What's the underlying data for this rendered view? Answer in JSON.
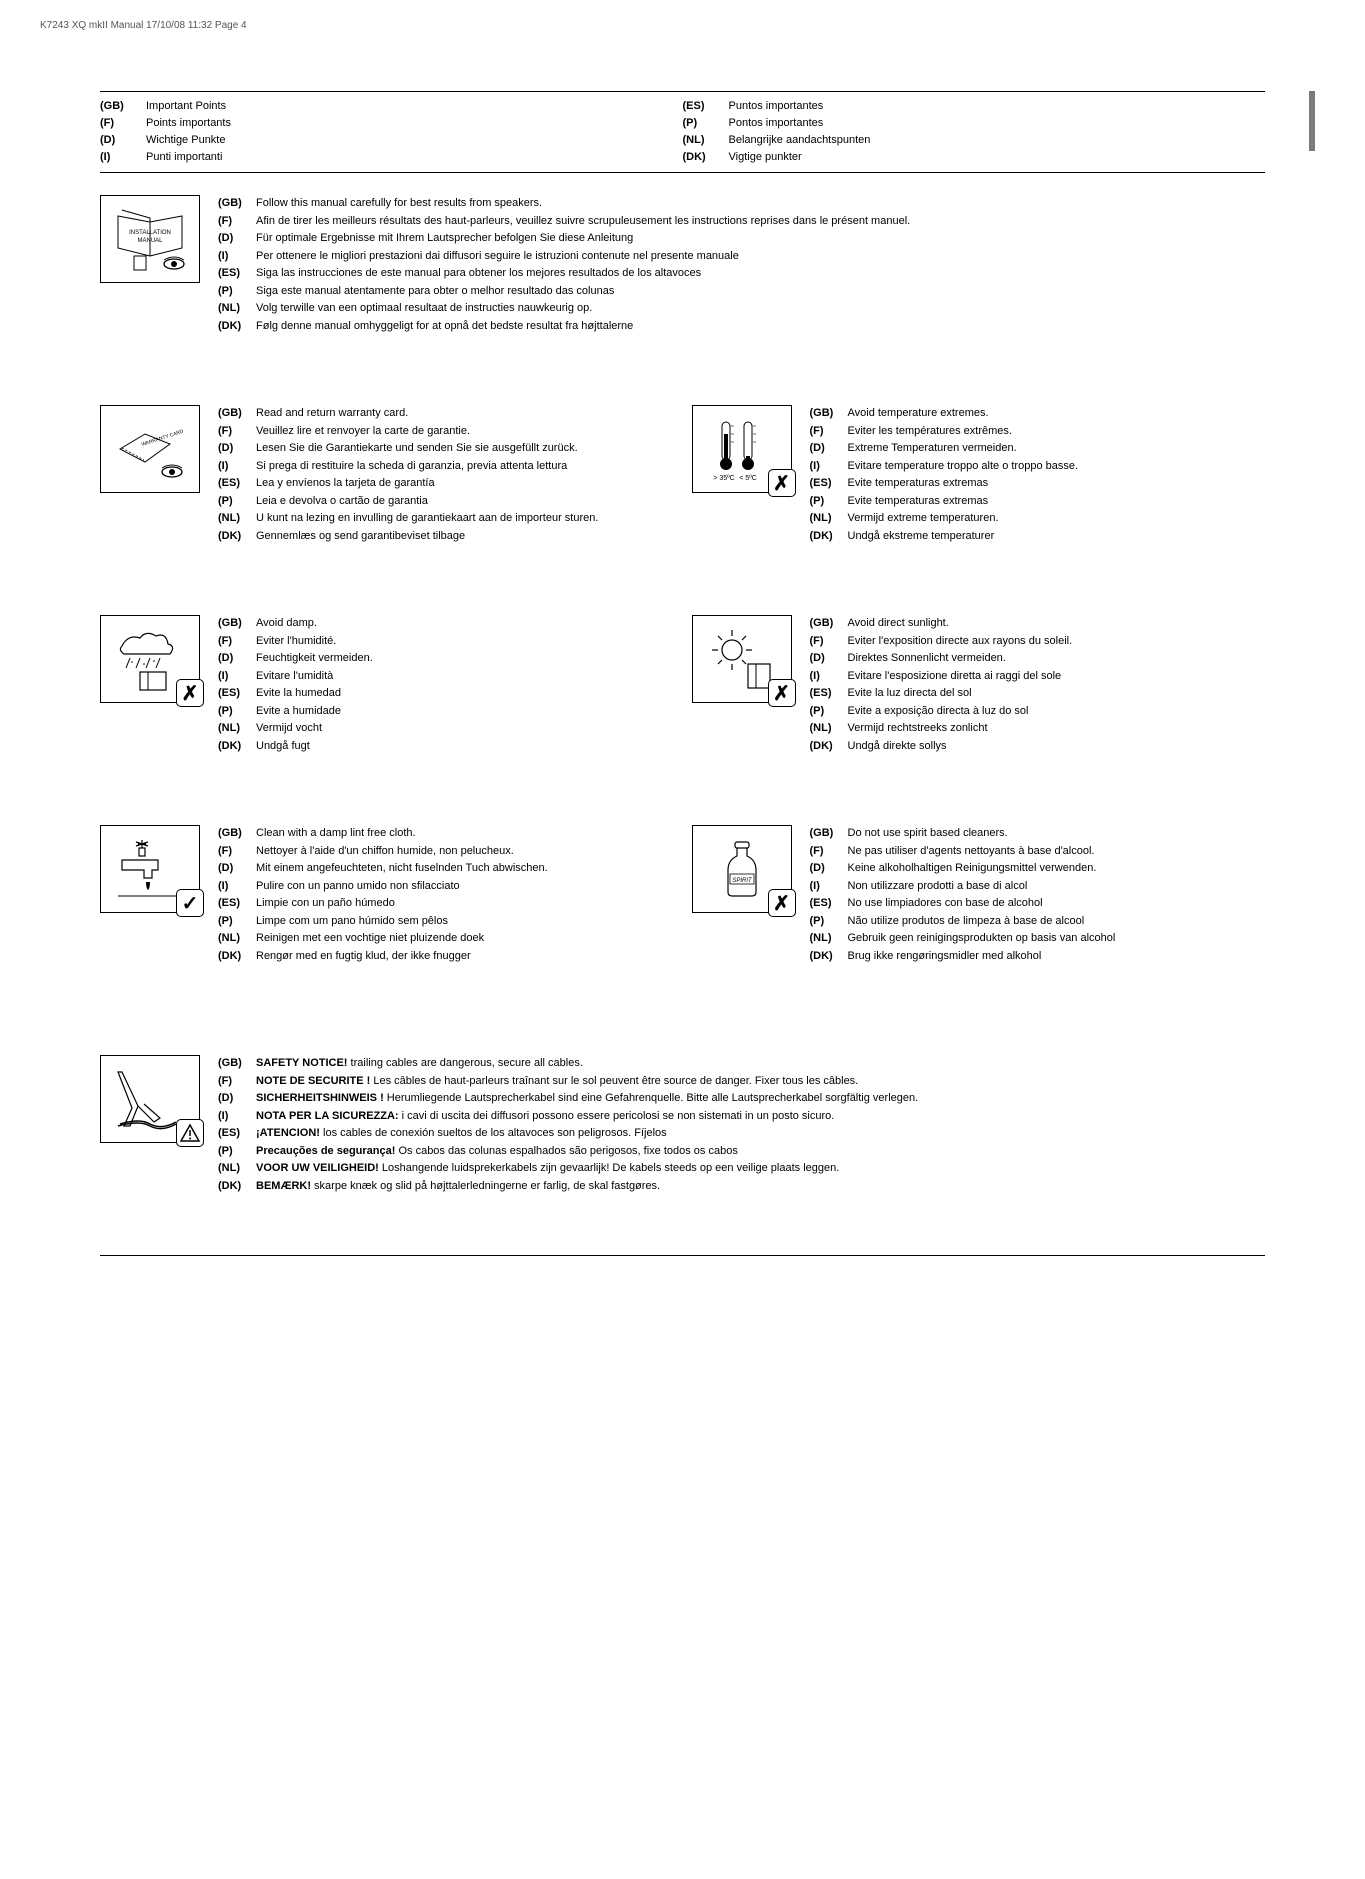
{
  "header_note": "K7243  XQ mkII Manual  17/10/08  11:32  Page 4",
  "titles": {
    "left": [
      {
        "code": "(GB)",
        "label": "Important Points"
      },
      {
        "code": "(F)",
        "label": "Points importants"
      },
      {
        "code": "(D)",
        "label": "Wichtige Punkte"
      },
      {
        "code": "(I)",
        "label": "Punti importanti"
      }
    ],
    "right": [
      {
        "code": "(ES)",
        "label": "Puntos importantes"
      },
      {
        "code": "(P)",
        "label": "Pontos importantes"
      },
      {
        "code": "(NL)",
        "label": "Belangrijke aandachtspunten"
      },
      {
        "code": "(DK)",
        "label": "Vigtige punkter"
      }
    ]
  },
  "section1": [
    {
      "code": "(GB)",
      "text": "Follow this manual carefully for best results from speakers."
    },
    {
      "code": "(F)",
      "text": "Afin de tirer les meilleurs résultats des haut-parleurs, veuillez suivre scrupuleusement les instructions reprises dans le présent manuel."
    },
    {
      "code": "(D)",
      "text": "Für optimale Ergebnisse mit Ihrem Lautsprecher befolgen Sie diese Anleitung"
    },
    {
      "code": "(I)",
      "text": "Per ottenere le migliori prestazioni dai diffusori seguire le istruzioni contenute nel presente manuale"
    },
    {
      "code": "(ES)",
      "text": "Siga las instrucciones de este manual para obtener los mejores resultados de los altavoces"
    },
    {
      "code": "(P)",
      "text": "Siga este manual atentamente para obter o melhor resultado das colunas"
    },
    {
      "code": "(NL)",
      "text": "Volg terwille van een optimaal resultaat de instructies nauwkeurig op."
    },
    {
      "code": "(DK)",
      "text": "Følg denne manual omhyggeligt for at opnå det bedste resultat fra højttalerne"
    }
  ],
  "icon1_label1": "INSTALLATION",
  "icon1_label2": "MANUAL",
  "section2": {
    "left": [
      {
        "code": "(GB)",
        "text": "Read and return warranty card."
      },
      {
        "code": "(F)",
        "text": "Veuillez lire et renvoyer la carte de garantie."
      },
      {
        "code": "(D)",
        "text": "Lesen Sie die Garantiekarte und senden Sie sie ausgefüllt zurück."
      },
      {
        "code": "(I)",
        "text": "Si prega di restituire la scheda di garanzia, previa attenta lettura"
      },
      {
        "code": "(ES)",
        "text": "Lea y envíenos la tarjeta de garantía"
      },
      {
        "code": "(P)",
        "text": "Leia e devolva o cartão de garantia"
      },
      {
        "code": "(NL)",
        "text": "U kunt na lezing en invulling de garantiekaart aan de importeur sturen."
      },
      {
        "code": "(DK)",
        "text": "Gennemlæs og send garantibeviset tilbage"
      }
    ],
    "right": [
      {
        "code": "(GB)",
        "text": "Avoid temperature extremes."
      },
      {
        "code": "(F)",
        "text": "Eviter les températures extrêmes."
      },
      {
        "code": "(D)",
        "text": "Extreme Temperaturen vermeiden."
      },
      {
        "code": "(I)",
        "text": "Evitare temperature troppo alte o troppo basse."
      },
      {
        "code": "(ES)",
        "text": "Evite temperaturas extremas"
      },
      {
        "code": "(P)",
        "text": "Evite temperaturas extremas"
      },
      {
        "code": "(NL)",
        "text": "Vermijd extreme temperaturen."
      },
      {
        "code": "(DK)",
        "text": "Undgå ekstreme temperaturer"
      }
    ],
    "temp_labels": {
      "hot": "> 35ºC",
      "cold": "< 5ºC"
    }
  },
  "warranty_label": "WARRANTY CARD",
  "section3": {
    "left": [
      {
        "code": "(GB)",
        "text": "Avoid damp."
      },
      {
        "code": "(F)",
        "text": "Eviter l'humidité."
      },
      {
        "code": "(D)",
        "text": "Feuchtigkeit vermeiden."
      },
      {
        "code": "(I)",
        "text": "Evitare l'umidità"
      },
      {
        "code": "(ES)",
        "text": "Evite la humedad"
      },
      {
        "code": "(P)",
        "text": "Evite a humidade"
      },
      {
        "code": "(NL)",
        "text": "Vermijd vocht"
      },
      {
        "code": "(DK)",
        "text": "Undgå fugt"
      }
    ],
    "right": [
      {
        "code": "(GB)",
        "text": "Avoid direct sunlight."
      },
      {
        "code": "(F)",
        "text": "Eviter l'exposition directe aux rayons du soleil."
      },
      {
        "code": "(D)",
        "text": "Direktes Sonnenlicht vermeiden."
      },
      {
        "code": "(I)",
        "text": "Evitare l'esposizione diretta ai raggi del sole"
      },
      {
        "code": "(ES)",
        "text": "Evite la luz directa del sol"
      },
      {
        "code": "(P)",
        "text": "Evite a exposição directa à luz do sol"
      },
      {
        "code": "(NL)",
        "text": "Vermijd rechtstreeks zonlicht"
      },
      {
        "code": "(DK)",
        "text": "Undgå direkte sollys"
      }
    ]
  },
  "section4": {
    "left": [
      {
        "code": "(GB)",
        "text": "Clean with a damp lint free cloth."
      },
      {
        "code": "(F)",
        "text": "Nettoyer à l'aide d'un chiffon humide, non pelucheux."
      },
      {
        "code": "(D)",
        "text": "Mit einem angefeuchteten, nicht fuselnden Tuch abwischen."
      },
      {
        "code": "(I)",
        "text": "Pulire con un panno umido non sfilacciato"
      },
      {
        "code": "(ES)",
        "text": "Limpie con un paño húmedo"
      },
      {
        "code": "(P)",
        "text": "Limpe com um pano húmido sem pêlos"
      },
      {
        "code": "(NL)",
        "text": "Reinigen met een vochtige niet pluizende doek"
      },
      {
        "code": "(DK)",
        "text": "Rengør med en fugtig klud, der ikke fnugger"
      }
    ],
    "right": [
      {
        "code": "(GB)",
        "text": "Do not use spirit based cleaners."
      },
      {
        "code": "(F)",
        "text": "Ne pas utiliser d'agents nettoyants à base d'alcool."
      },
      {
        "code": "(D)",
        "text": "Keine alkoholhaltigen Reinigungsmittel verwenden."
      },
      {
        "code": "(I)",
        "text": "Non utilizzare prodotti a base di alcol"
      },
      {
        "code": "(ES)",
        "text": "No use limpiadores con base de alcohol"
      },
      {
        "code": "(P)",
        "text": "Não utilize produtos de limpeza à base de alcool"
      },
      {
        "code": "(NL)",
        "text": "Gebruik geen reinigingsprodukten op basis van alcohol"
      },
      {
        "code": "(DK)",
        "text": "Brug ikke rengøringsmidler med alkohol"
      }
    ],
    "spirit_label": "SPIRIT"
  },
  "section5": [
    {
      "code": "(GB)",
      "bold": "SAFETY NOTICE!",
      "text": " trailing cables are dangerous, secure all cables."
    },
    {
      "code": "(F)",
      "bold": "NOTE DE SECURITE !",
      "text": " Les câbles de haut-parleurs traînant sur le sol peuvent être source de danger. Fixer tous les câbles."
    },
    {
      "code": "(D)",
      "bold": "SICHERHEITSHINWEIS !",
      "text": " Herumliegende Lautsprecherkabel sind eine Gefahrenquelle. Bitte alle Lautsprecherkabel sorgfältig verlegen."
    },
    {
      "code": "(I)",
      "bold": "NOTA PER LA SICUREZZA:",
      "text": " i cavi di uscita dei diffusori possono essere pericolosi se non sistemati in un posto sicuro."
    },
    {
      "code": "(ES)",
      "bold": "¡ATENCION!",
      "text": " los cables de conexión sueltos de los altavoces son peligrosos. Fíjelos"
    },
    {
      "code": "(P)",
      "bold": "Precauções de segurança!",
      "text": " Os cabos das colunas  espalhados são perigosos, fixe todos os cabos"
    },
    {
      "code": "(NL)",
      "bold": "VOOR UW VEILIGHEID!",
      "text": " Loshangende luidsprekerkabels zijn gevaarlijk! De kabels steeds op een veilige plaats leggen."
    },
    {
      "code": "(DK)",
      "bold": "BEMÆRK!",
      "text": " skarpe knæk og slid på højttalerledningerne er farlig, de skal fastgøres."
    }
  ]
}
